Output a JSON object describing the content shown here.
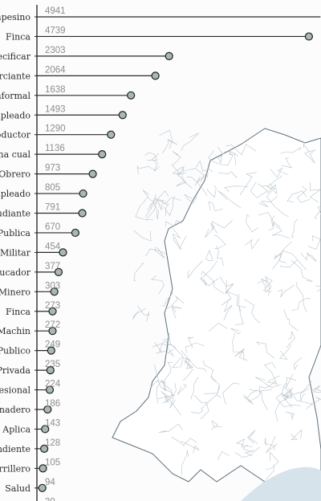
{
  "chart_data": {
    "type": "lollipop",
    "orientation": "horizontal",
    "categories": [
      "Campesino",
      "Finca",
      "Sin Especificar",
      "Comerciante",
      "Trabajador Informal",
      "Empleado",
      "Productor",
      "Persona cual",
      "Obrero",
      "Desempleado",
      "Estudiante",
      "Servidor Publica",
      "Militar",
      "Educador",
      "Minero",
      "Finca",
      "Machin",
      "Publico",
      "Privada",
      "Profesional",
      "Ganadero",
      "No Aplica",
      "Dependiente",
      "Guerrillero",
      "Salud",
      ""
    ],
    "values": [
      4941,
      4739,
      2303,
      2064,
      1638,
      1493,
      1290,
      1136,
      973,
      805,
      791,
      670,
      454,
      377,
      303,
      273,
      272,
      249,
      235,
      224,
      186,
      143,
      128,
      105,
      94,
      30
    ],
    "xlim": [
      0,
      4950
    ],
    "colors": {
      "dot_fill": "#a9b7b7",
      "stem": "#2a2a2a",
      "axis": "#1d1d1d",
      "value_label": "#8d8d8d",
      "map_lines": "#b4c0c8",
      "sea": "#d7e3ea"
    }
  },
  "map": {
    "region": "Colombia municipalities",
    "style": "outline"
  }
}
